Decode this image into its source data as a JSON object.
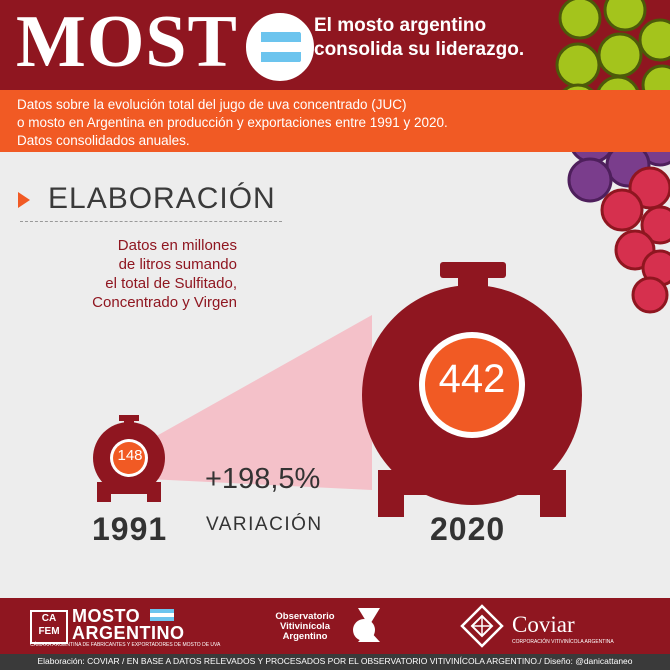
{
  "header": {
    "logo_text": "MOST",
    "headline_1": "El mosto argentino",
    "headline_2": "consolida su liderazgo."
  },
  "intro": {
    "line_1": "Datos sobre la evolución total del jugo de uva concentrado (JUC)",
    "line_2": "o mosto en Argentina en producción y exportaciones entre 1991 y 2020.",
    "line_3": "Datos consolidados anuales."
  },
  "section": {
    "title": "ELABORACIÓN",
    "note_1": "Datos en millones",
    "note_2": "de litros sumando",
    "note_3": "el total de Sulfitado,",
    "note_4": "Concentrado y Virgen"
  },
  "comparison": {
    "start": {
      "year": "1991",
      "value": "148"
    },
    "end": {
      "year": "2020",
      "value": "442"
    },
    "change": "+198,5%",
    "change_label": "VARIACIÓN"
  },
  "footer": {
    "cafem_1": "CA",
    "cafem_2": "FEM",
    "mosto_1": "MOSTO",
    "mosto_2": "ARGENTINO",
    "mosto_sub": "CÁMARA ARGENTINA DE FABRICANTES Y EXPORTADORES DE MOSTO DE UVA",
    "obs_1": "Observatorio",
    "obs_2": "Vitivinícola",
    "obs_3": "Argentino",
    "coviar": "Coviar",
    "coviar_sub": "CORPORACIÓN VITIVINÍCOLA ARGENTINA",
    "credits": "Elaboración: COVIAR / EN BASE A DATOS RELEVADOS Y PROCESADOS POR EL OBSERVATORIO VITIVINÍCOLA ARGENTINO./ Diseño: @danicattaneo"
  },
  "colors": {
    "brand_red": "#8f1620",
    "accent_orange": "#f15a24",
    "grape_green": "#a4c41c",
    "grape_purple": "#7a3d8c",
    "grape_red": "#d6304e",
    "flag_blue": "#6cc4ee"
  },
  "icons": [
    "flag-icon",
    "grapes-illustration",
    "tank-icon",
    "observatorio-logo-icon",
    "coviar-logo-icon"
  ]
}
